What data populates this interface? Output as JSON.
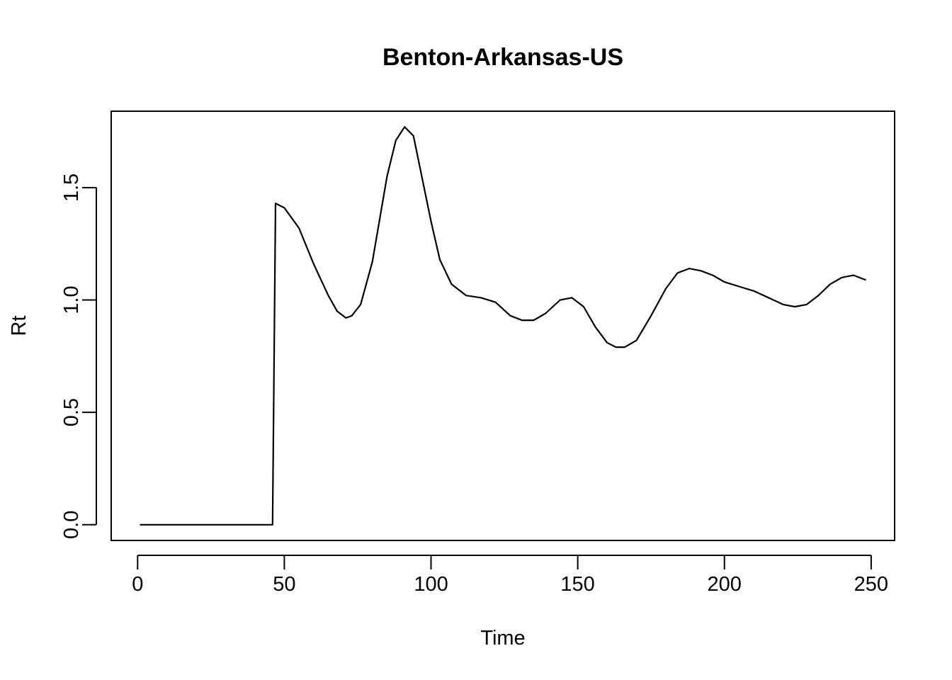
{
  "chart_data": {
    "type": "line",
    "title": "Benton-Arkansas-US",
    "xlabel": "Time",
    "ylabel": "Rt",
    "xlim": [
      -9,
      258
    ],
    "ylim": [
      -0.07,
      1.84
    ],
    "xticks": [
      0,
      50,
      100,
      150,
      200,
      250
    ],
    "yticks": [
      0.0,
      0.5,
      1.0,
      1.5
    ],
    "xtick_labels": [
      "0",
      "50",
      "100",
      "150",
      "200",
      "250"
    ],
    "ytick_labels": [
      "0.0",
      "0.5",
      "1.0",
      "1.5"
    ],
    "grid": false,
    "legend": "none",
    "series": [
      {
        "color": "#000000",
        "x": [
          1,
          46,
          47,
          50,
          55,
          60,
          65,
          68,
          71,
          73,
          76,
          80,
          85,
          88,
          91,
          94,
          97,
          100,
          103,
          107,
          112,
          117,
          122,
          127,
          131,
          135,
          139,
          144,
          148,
          152,
          156,
          160,
          163,
          166,
          170,
          175,
          180,
          184,
          188,
          192,
          196,
          200,
          205,
          210,
          215,
          220,
          224,
          228,
          232,
          236,
          240,
          244,
          248
        ],
        "y": [
          0,
          0,
          1.43,
          1.41,
          1.32,
          1.16,
          1.02,
          0.95,
          0.92,
          0.93,
          0.98,
          1.17,
          1.55,
          1.71,
          1.77,
          1.73,
          1.54,
          1.35,
          1.18,
          1.07,
          1.02,
          1.01,
          0.99,
          0.93,
          0.91,
          0.91,
          0.94,
          1.0,
          1.01,
          0.97,
          0.88,
          0.81,
          0.79,
          0.79,
          0.82,
          0.93,
          1.05,
          1.12,
          1.14,
          1.13,
          1.11,
          1.08,
          1.06,
          1.04,
          1.01,
          0.98,
          0.97,
          0.98,
          1.02,
          1.07,
          1.1,
          1.11,
          1.09
        ]
      }
    ]
  }
}
